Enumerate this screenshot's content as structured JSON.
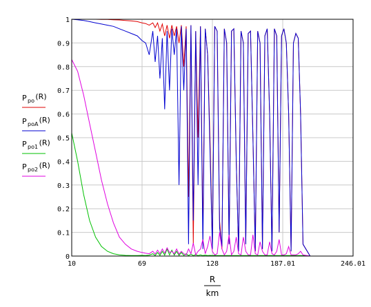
{
  "chart_data": {
    "type": "line",
    "title": "",
    "xlabel_num": "R",
    "xlabel_den": "km",
    "xlim": [
      10,
      246.01
    ],
    "ylim": [
      0,
      1
    ],
    "grid": true,
    "legend_position": "left",
    "x_ticks": [
      "10",
      "69",
      "128",
      "187.01",
      "246.01"
    ],
    "y_ticks": [
      "0",
      "0.1",
      "0.2",
      "0.3",
      "0.4",
      "0.5",
      "0.6",
      "0.7",
      "0.8",
      "0.9",
      "1"
    ],
    "x": [
      10,
      15,
      20,
      25,
      30,
      35,
      40,
      45,
      50,
      55,
      60,
      65,
      69,
      72,
      75,
      78,
      80,
      82,
      84,
      86,
      88,
      90,
      92,
      94,
      96,
      98,
      100,
      102,
      104,
      106,
      108,
      110,
      112,
      114,
      116,
      118,
      120,
      122,
      124,
      126,
      128,
      130,
      132,
      134,
      136,
      138,
      140,
      142,
      144,
      146,
      148,
      150,
      152,
      154,
      156,
      158,
      160,
      162,
      164,
      166,
      168,
      170,
      172,
      174,
      176,
      178,
      180,
      182,
      184,
      186,
      188,
      190,
      192,
      194,
      196,
      198,
      200,
      202,
      204,
      210,
      220,
      230,
      246.01
    ],
    "series": [
      {
        "legend_main": "P",
        "legend_sub": "po",
        "legend_arg": "(R)",
        "color": "#e00000",
        "values": [
          1,
          1,
          1,
          1,
          1,
          0.999,
          0.999,
          0.998,
          0.997,
          0.995,
          0.993,
          0.99,
          0.985,
          0.982,
          0.975,
          0.985,
          0.965,
          0.985,
          0.95,
          0.98,
          0.93,
          0.975,
          0.92,
          0.975,
          0.93,
          0.97,
          0.9,
          0.975,
          0.8,
          0.97,
          0.25,
          0.975,
          0.05,
          0.95,
          0.5,
          0.97,
          0.1,
          0.96,
          0.85,
          0.5,
          0.04,
          0.97,
          0.95,
          0.15,
          0.03,
          0.96,
          0.9,
          0.05,
          0.95,
          0.96,
          0.4,
          0.02,
          0.95,
          0.9,
          0.05,
          0.94,
          0.95,
          0.5,
          0.02,
          0.95,
          0.9,
          0.03,
          0.93,
          0.96,
          0.6,
          0.02,
          0.96,
          0.93,
          0.1,
          0.93,
          0.96,
          0.9,
          0.6,
          0.02,
          0.9,
          0.94,
          0.92,
          0.6,
          0.05,
          0,
          0,
          0,
          0
        ]
      },
      {
        "legend_main": "P",
        "legend_sub": "poA",
        "legend_arg": "(R)",
        "color": "#0000d0",
        "values": [
          1,
          0.998,
          0.995,
          0.99,
          0.985,
          0.98,
          0.975,
          0.97,
          0.96,
          0.95,
          0.94,
          0.93,
          0.91,
          0.9,
          0.85,
          0.95,
          0.82,
          0.93,
          0.75,
          0.92,
          0.62,
          0.95,
          0.7,
          0.96,
          0.85,
          0.96,
          0.3,
          0.97,
          0.7,
          0.96,
          0.05,
          0.975,
          0.15,
          0.95,
          0.3,
          0.97,
          0.03,
          0.96,
          0.85,
          0.45,
          0.03,
          0.97,
          0.95,
          0.12,
          0.04,
          0.96,
          0.9,
          0.05,
          0.95,
          0.96,
          0.4,
          0.02,
          0.95,
          0.9,
          0.05,
          0.94,
          0.95,
          0.5,
          0.02,
          0.95,
          0.9,
          0.03,
          0.93,
          0.96,
          0.6,
          0.02,
          0.96,
          0.93,
          0.1,
          0.93,
          0.96,
          0.9,
          0.6,
          0.02,
          0.9,
          0.94,
          0.92,
          0.6,
          0.05,
          0,
          0,
          0,
          0
        ]
      },
      {
        "legend_main": "P",
        "legend_sub": "po1",
        "legend_arg": "(R)",
        "color": "#00c000",
        "values": [
          0.52,
          0.4,
          0.26,
          0.15,
          0.08,
          0.04,
          0.02,
          0.01,
          0.005,
          0.003,
          0.002,
          0.002,
          0.003,
          0.002,
          0.004,
          0.01,
          0.002,
          0.015,
          0.003,
          0.02,
          0.004,
          0.03,
          0.005,
          0.025,
          0.004,
          0.02,
          0.003,
          0.015,
          0.003,
          0.01,
          0.002,
          0.008,
          0.002,
          0.006,
          0.002,
          0.005,
          0.002,
          0.004,
          0.002,
          0.003,
          0.002,
          0.003,
          0.002,
          0.002,
          0.002,
          0.002,
          0.002,
          0.002,
          0.002,
          0.002,
          0.002,
          0.002,
          0.002,
          0.002,
          0.002,
          0.002,
          0.002,
          0.002,
          0.002,
          0.002,
          0.002,
          0.002,
          0.002,
          0.002,
          0.002,
          0.002,
          0.002,
          0.002,
          0.002,
          0.002,
          0.002,
          0.002,
          0.002,
          0.002,
          0.002,
          0.002,
          0.002,
          0.002,
          0.002,
          0,
          0,
          0,
          0
        ]
      },
      {
        "legend_main": "P",
        "legend_sub": "po2",
        "legend_arg": "(R)",
        "color": "#e000e0",
        "values": [
          0.83,
          0.78,
          0.68,
          0.56,
          0.44,
          0.32,
          0.22,
          0.14,
          0.08,
          0.05,
          0.03,
          0.02,
          0.015,
          0.012,
          0.01,
          0.02,
          0.008,
          0.025,
          0.01,
          0.03,
          0.012,
          0.035,
          0.015,
          0.02,
          0.01,
          0.03,
          0.008,
          0.02,
          0.01,
          0.005,
          0.03,
          0.01,
          0.055,
          0.005,
          0.02,
          0.03,
          0.07,
          0.01,
          0.04,
          0.085,
          0.02,
          0.005,
          0.01,
          0.1,
          0.03,
          0.005,
          0.02,
          0.09,
          0.005,
          0.02,
          0.08,
          0.01,
          0.005,
          0.08,
          0.02,
          0.005,
          0.005,
          0.09,
          0.01,
          0.005,
          0.06,
          0.02,
          0.005,
          0.005,
          0.06,
          0.01,
          0.005,
          0.02,
          0.07,
          0.005,
          0.005,
          0.01,
          0.04,
          0.005,
          0.005,
          0.005,
          0.01,
          0.02,
          0.005,
          0,
          0,
          0,
          0
        ]
      }
    ]
  }
}
